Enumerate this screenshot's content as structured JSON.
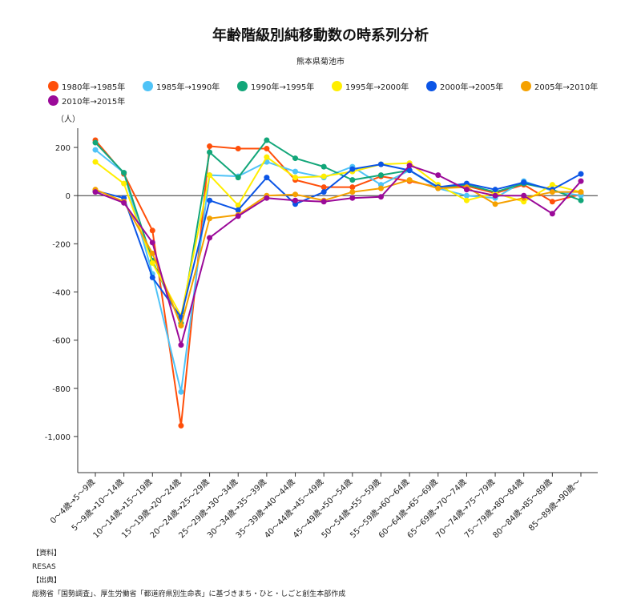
{
  "chart_data": {
    "type": "line",
    "title": "年齢階級別純移動数の時系列分析",
    "subtitle": "熊本県菊池市",
    "ylabel": "（人）",
    "xlabel": "",
    "ylim": [
      -1150,
      280
    ],
    "yticks": [
      200,
      0,
      -200,
      -400,
      -600,
      -800,
      -1000
    ],
    "ytick_labels": [
      "200",
      "0",
      "-200",
      "-400",
      "-600",
      "-800",
      "-1,000"
    ],
    "legend_position": "top",
    "grid": false,
    "categories": [
      "0～4歳→5～9歳",
      "5～9歳→10～14歳",
      "10～14歳→15～19歳",
      "15～19歳→20～24歳",
      "20～24歳→25～29歳",
      "25～29歳→30～34歳",
      "30～34歳→35～39歳",
      "35～39歳→40～44歳",
      "40～44歳→45～49歳",
      "45～49歳→50～54歳",
      "50～54歳→55～59歳",
      "55～59歳→60～64歳",
      "60～64歳→65～69歳",
      "65～69歳→70～74歳",
      "70～74歳→75～79歳",
      "75～79歳→80～84歳",
      "80～84歳→85～89歳",
      "85～89歳→90歳～"
    ],
    "series": [
      {
        "name": "1980年→1985年",
        "color": "#ff4f0a",
        "values": [
          230,
          90,
          -145,
          -955,
          205,
          195,
          195,
          65,
          35,
          35,
          80,
          60,
          35,
          40,
          10,
          45,
          -25,
          5
        ]
      },
      {
        "name": "1985年→1990年",
        "color": "#4fc3f7",
        "values": [
          190,
          95,
          -325,
          -815,
          85,
          80,
          140,
          100,
          75,
          120,
          45,
          105,
          30,
          0,
          -10,
          60,
          20,
          0
        ]
      },
      {
        "name": "1990年→1995年",
        "color": "#12a679",
        "values": [
          220,
          95,
          -270,
          -530,
          180,
          75,
          230,
          155,
          120,
          65,
          85,
          105,
          35,
          45,
          15,
          50,
          25,
          -20
        ]
      },
      {
        "name": "1995年→2000年",
        "color": "#ffee00",
        "values": [
          140,
          50,
          -280,
          -500,
          85,
          -40,
          160,
          75,
          80,
          100,
          130,
          135,
          45,
          -20,
          10,
          -25,
          45,
          15
        ]
      },
      {
        "name": "2000年→2005年",
        "color": "#0b55e6",
        "values": [
          20,
          -10,
          -340,
          -505,
          -20,
          -60,
          75,
          -35,
          15,
          110,
          130,
          105,
          35,
          50,
          25,
          55,
          25,
          90
        ]
      },
      {
        "name": "2005年→2010年",
        "color": "#f5a100",
        "values": [
          25,
          -25,
          -240,
          -540,
          -95,
          -80,
          0,
          5,
          -20,
          15,
          30,
          65,
          30,
          35,
          -35,
          -10,
          15,
          15
        ]
      },
      {
        "name": "2010年→2015年",
        "color": "#9b0a99",
        "values": [
          15,
          -30,
          -195,
          -620,
          -175,
          -85,
          -10,
          -20,
          -25,
          -10,
          -5,
          125,
          85,
          25,
          0,
          0,
          -75,
          60
        ]
      }
    ]
  },
  "notes": {
    "source_heading": "【資料】",
    "source": "RESAS",
    "origin_heading": "【出典】",
    "origin": "総務省「国勢調査」、厚生労働省「都道府県別生命表」に基づきまち・ひと・しごと創生本部作成"
  }
}
